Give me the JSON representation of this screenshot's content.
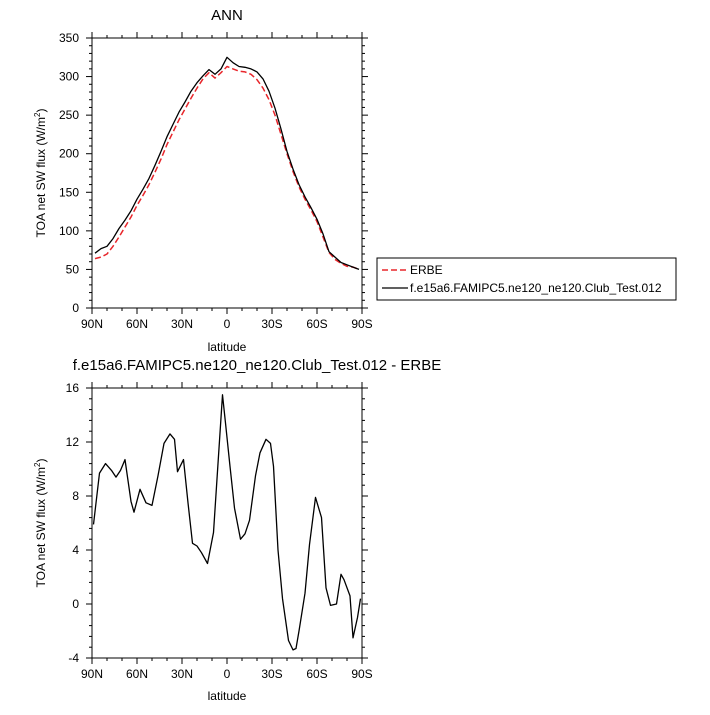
{
  "chart_data": [
    {
      "type": "line",
      "title": "ANN",
      "xlabel": "latitude",
      "ylabel": "TOA net SW flux (W/m",
      "ylabel_sup": "2",
      "ylabel_end": ")",
      "xlim": [
        -90,
        90
      ],
      "ylim": [
        0,
        350
      ],
      "xticks": [
        -90,
        -60,
        -30,
        0,
        30,
        60,
        90
      ],
      "xtick_labels": [
        "90N",
        "60N",
        "30N",
        "0",
        "30S",
        "60S",
        "90S"
      ],
      "yticks": [
        0,
        50,
        100,
        150,
        200,
        250,
        300,
        350
      ],
      "ytick_labels": [
        "0",
        "50",
        "100",
        "150",
        "200",
        "250",
        "300",
        "350"
      ],
      "grid": false,
      "legend_position": "right",
      "series": [
        {
          "name": "ERBE",
          "color": "#e8262b",
          "dash": "dashed",
          "x": [
            -88,
            -84,
            -80,
            -76,
            -72,
            -68,
            -64,
            -60,
            -56,
            -52,
            -48,
            -44,
            -40,
            -36,
            -32,
            -28,
            -24,
            -20,
            -16,
            -12,
            -8,
            -4,
            0,
            4,
            8,
            12,
            16,
            20,
            24,
            28,
            32,
            36,
            40,
            44,
            48,
            52,
            56,
            60,
            64,
            68,
            72,
            76,
            80,
            84,
            88
          ],
          "y": [
            64,
            66,
            70,
            80,
            92,
            105,
            118,
            133,
            146,
            160,
            176,
            193,
            212,
            228,
            244,
            258,
            272,
            285,
            297,
            305,
            298,
            305,
            313,
            310,
            307,
            306,
            303,
            296,
            285,
            270,
            250,
            225,
            200,
            177,
            157,
            141,
            127,
            112,
            92,
            72,
            63,
            58,
            54,
            53,
            50
          ]
        },
        {
          "name": "f.e15a6.FAMIPC5.ne120_ne120.Club_Test.012",
          "color": "#000000",
          "dash": "solid",
          "x": [
            -88,
            -84,
            -80,
            -76,
            -72,
            -68,
            -64,
            -60,
            -56,
            -52,
            -48,
            -44,
            -40,
            -36,
            -32,
            -28,
            -24,
            -20,
            -16,
            -12,
            -8,
            -4,
            0,
            4,
            8,
            12,
            16,
            20,
            24,
            28,
            32,
            36,
            40,
            44,
            48,
            52,
            56,
            60,
            64,
            68,
            72,
            76,
            80,
            84,
            88
          ],
          "y": [
            71,
            77,
            80,
            90,
            103,
            114,
            126,
            141,
            154,
            168,
            185,
            203,
            222,
            238,
            254,
            267,
            281,
            292,
            301,
            309,
            303,
            310,
            325,
            318,
            313,
            312,
            310,
            306,
            297,
            281,
            259,
            232,
            203,
            180,
            160,
            144,
            130,
            115,
            96,
            73,
            66,
            59,
            56,
            53,
            50
          ]
        }
      ]
    },
    {
      "type": "line",
      "title": "f.e15a6.FAMIPC5.ne120_ne120.Club_Test.012 - ERBE",
      "xlabel": "latitude",
      "ylabel": "TOA net SW flux (W/m",
      "ylabel_sup": "2",
      "ylabel_end": ")",
      "xlim": [
        -90,
        90
      ],
      "ylim": [
        -4,
        16
      ],
      "xticks": [
        -90,
        -60,
        -30,
        0,
        30,
        60,
        90
      ],
      "xtick_labels": [
        "90N",
        "60N",
        "30N",
        "0",
        "30S",
        "60S",
        "90S"
      ],
      "yticks": [
        -4,
        0,
        4,
        8,
        12,
        16
      ],
      "ytick_labels": [
        "-4",
        "0",
        "4",
        "8",
        "12",
        "16"
      ],
      "grid": false,
      "series": [
        {
          "color": "#000000",
          "dash": "solid",
          "x": [
            -89,
            -85,
            -81,
            -77,
            -74,
            -71,
            -68,
            -64,
            -62,
            -58,
            -54,
            -50,
            -46,
            -42,
            -38,
            -35,
            -33,
            -29,
            -26,
            -23,
            -20,
            -17,
            -13,
            -9,
            -6,
            -3,
            -1,
            2,
            5,
            9,
            12,
            15,
            19,
            22,
            26,
            29,
            31,
            34,
            37,
            41,
            44,
            46,
            48,
            52,
            55,
            59,
            63,
            66,
            69,
            73,
            76,
            78,
            82,
            84,
            87,
            89
          ],
          "y": [
            5.9,
            9.7,
            10.4,
            9.9,
            9.4,
            9.9,
            10.7,
            7.6,
            6.8,
            8.5,
            7.5,
            7.3,
            9.5,
            11.9,
            12.6,
            12.2,
            9.8,
            10.7,
            7.5,
            4.5,
            4.3,
            3.8,
            3.0,
            5.3,
            10.4,
            15.5,
            13.4,
            10.2,
            7.1,
            4.8,
            5.2,
            6.2,
            9.5,
            11.2,
            12.2,
            11.9,
            10.2,
            4.0,
            0.4,
            -2.7,
            -3.4,
            -3.3,
            -2.0,
            0.8,
            4.4,
            7.9,
            6.4,
            1.2,
            -0.1,
            0.0,
            2.2,
            1.8,
            0.6,
            -2.5,
            -1.0,
            0.4
          ]
        }
      ]
    }
  ]
}
